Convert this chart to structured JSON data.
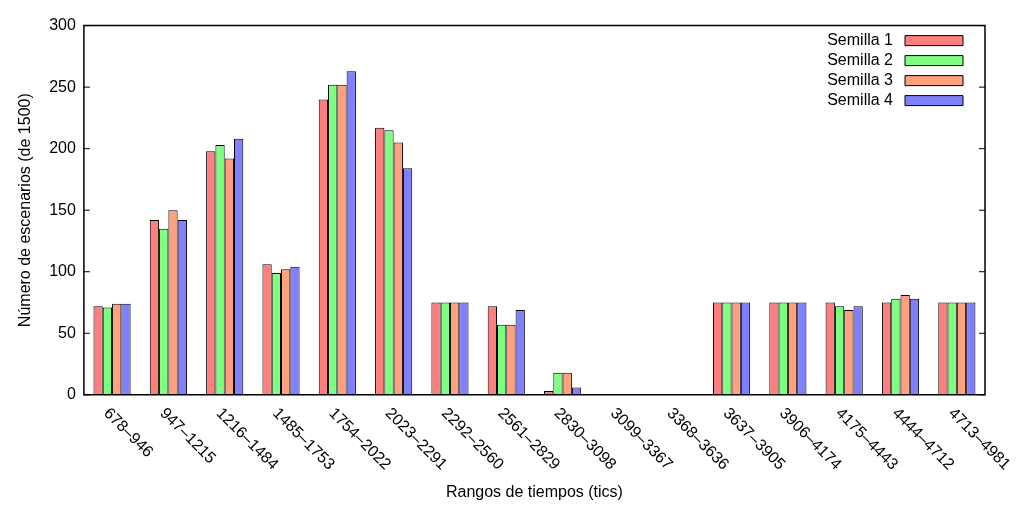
{
  "chart_data": {
    "type": "bar",
    "xlabel": "Rangos de tiempos (tics)",
    "ylabel": "Número de escenarios (de 1500)",
    "categories": [
      "678–946",
      "947–1215",
      "1216–1484",
      "1485–1753",
      "1754–2022",
      "2023–2291",
      "2292–2560",
      "2561–2829",
      "2830–3098",
      "3099–3367",
      "3368–3636",
      "3637–3905",
      "3906–4174",
      "4175–4443",
      "4444–4712",
      "4713–4981"
    ],
    "series": [
      {
        "name": "Semilla 1",
        "color": "#ff7f7f",
        "values": [
          72,
          142,
          198,
          106,
          240,
          217,
          75,
          72,
          3,
          0,
          0,
          75,
          75,
          75,
          75,
          75
        ]
      },
      {
        "name": "Semilla 2",
        "color": "#7fff7f",
        "values": [
          71,
          135,
          203,
          99,
          252,
          215,
          75,
          57,
          18,
          0,
          0,
          75,
          75,
          72,
          78,
          75
        ]
      },
      {
        "name": "Semilla 3",
        "color": "#ffa07f",
        "values": [
          74,
          150,
          192,
          102,
          252,
          205,
          75,
          57,
          18,
          0,
          0,
          75,
          75,
          69,
          81,
          75
        ]
      },
      {
        "name": "Semilla 4",
        "color": "#7f7fff",
        "values": [
          74,
          142,
          208,
          104,
          263,
          184,
          75,
          69,
          6,
          0,
          0,
          75,
          75,
          72,
          78,
          75
        ]
      }
    ],
    "ylim": [
      0,
      300
    ],
    "yticks": [
      0,
      50,
      100,
      150,
      200,
      250,
      300
    ],
    "grid": false,
    "legend": "top right"
  }
}
